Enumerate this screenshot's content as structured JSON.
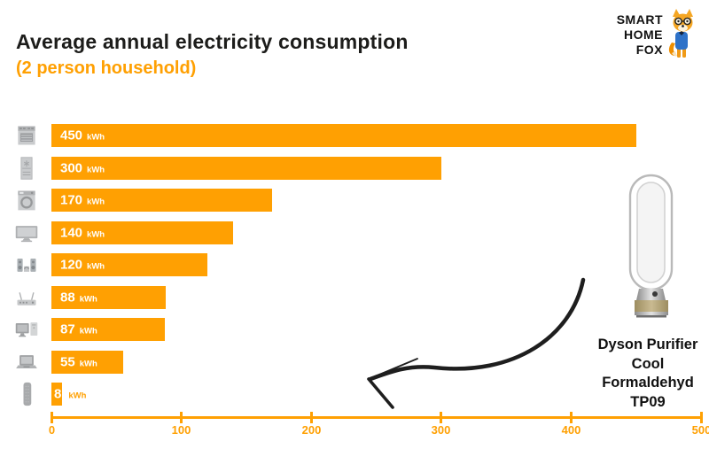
{
  "header": {
    "title": "Average annual electricity consumption",
    "subtitle": "(2 person household)"
  },
  "logo": {
    "lines": [
      "SMART",
      "HOME",
      "FOX"
    ]
  },
  "colors": {
    "accent_orange": "#ffa002",
    "title_black": "#1d1d1b",
    "icon_gray": "#c0c2c4",
    "arrow_black": "#1e1e1e"
  },
  "chart_data": {
    "type": "bar",
    "orientation": "horizontal",
    "title": "Average annual electricity consumption",
    "subtitle": "(2 person household)",
    "unit": "kWh",
    "categories": [
      "oven",
      "fridge-freezer",
      "washing-machine",
      "tv",
      "stereo-system",
      "wifi-router",
      "desktop-computer",
      "laptop",
      "air-purifier-dyson-tp09"
    ],
    "values": [
      450,
      300,
      170,
      140,
      120,
      88,
      87,
      55,
      8
    ],
    "value_labels": [
      "450 kWh",
      "300 kWh",
      "170 kWh",
      "140 kWh",
      "120 kWh",
      "88 kWh",
      "87 kWh",
      "55 kWh",
      "8 kWh"
    ],
    "xlim": [
      0,
      500
    ],
    "x_ticks": [
      "0",
      "100",
      "200",
      "300",
      "400",
      "500"
    ],
    "grid": false,
    "legend": false,
    "bar_color": "#ffa002"
  },
  "annotation": {
    "product_lines": [
      "Dyson Purifier",
      "Cool",
      "Formaldehyd",
      "TP09"
    ]
  }
}
